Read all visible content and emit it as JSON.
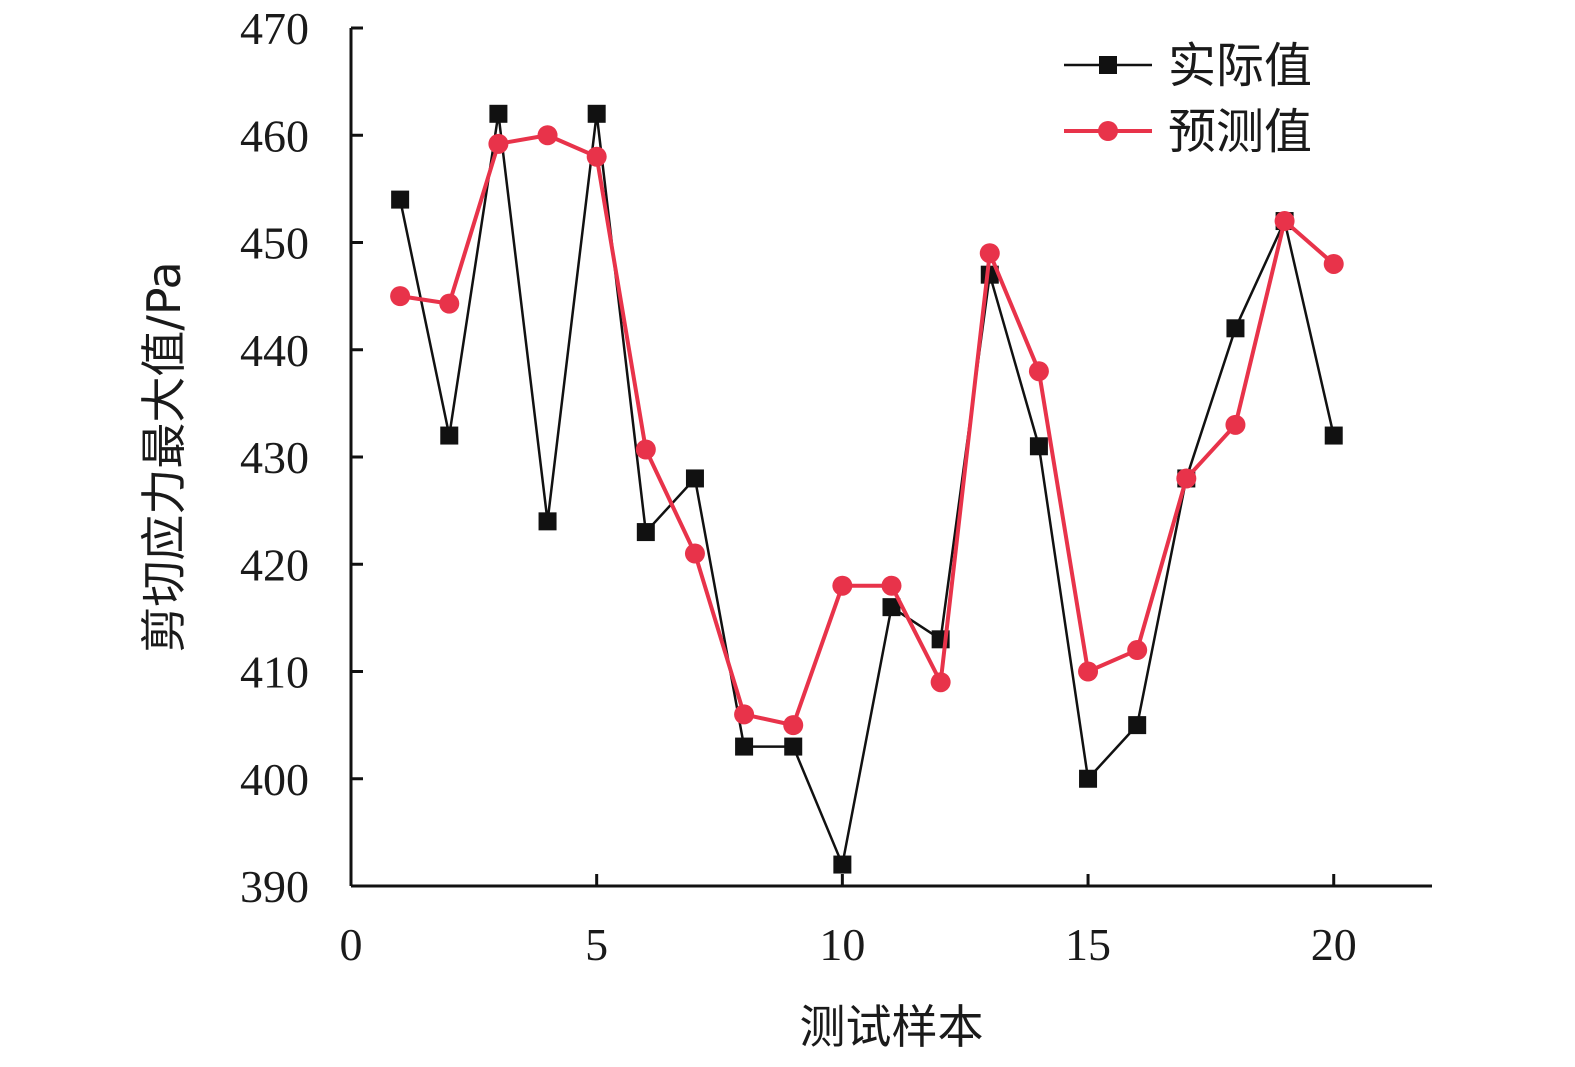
{
  "chart_data": {
    "type": "line",
    "xlabel": "测试样本",
    "ylabel": "剪切应力最大值/Pa",
    "xlim": [
      0,
      22
    ],
    "ylim": [
      390,
      470
    ],
    "x_ticks": [
      0,
      5,
      10,
      15,
      20
    ],
    "y_ticks": [
      390,
      400,
      410,
      420,
      430,
      440,
      450,
      460,
      470
    ],
    "grid": false,
    "legend_position": "top-right",
    "x": [
      1,
      2,
      3,
      4,
      5,
      6,
      7,
      8,
      9,
      10,
      11,
      12,
      13,
      14,
      15,
      16,
      17,
      18,
      19,
      20
    ],
    "series": [
      {
        "name": "实际值",
        "color": "#111111",
        "marker": "square",
        "values": [
          454,
          432,
          462,
          424,
          462,
          423,
          428,
          403,
          403,
          392,
          416,
          413,
          447,
          431,
          400,
          405,
          428,
          442,
          452,
          432
        ]
      },
      {
        "name": "预测值",
        "color": "#e8334a",
        "marker": "circle",
        "values": [
          445,
          444.3,
          459.2,
          460,
          458,
          430.7,
          421,
          406,
          405,
          418,
          418,
          409,
          449,
          438,
          410,
          412,
          428,
          433,
          452,
          448
        ]
      }
    ]
  }
}
